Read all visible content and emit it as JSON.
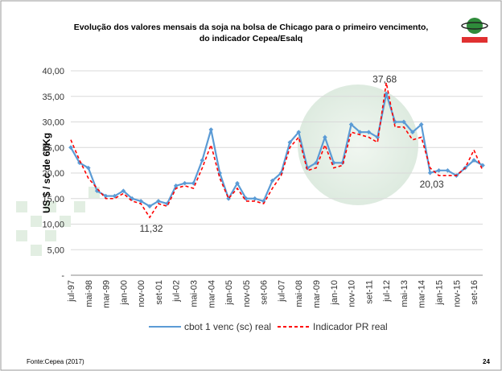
{
  "chart_data": {
    "type": "line",
    "title": "Evolução dos valores mensais da soja na bolsa de Chicago para o primeiro vencimento,",
    "subtitle": "do indicador Cepea/Esalq",
    "y_label": "US $ / sc de 60Kg",
    "source": "Fonte:Cepea (2017)",
    "page_number": "24",
    "categories": [
      "jul-97",
      null,
      "mai-98",
      null,
      "mar-99",
      null,
      "jan-00",
      null,
      "nov-00",
      null,
      "set-01",
      null,
      "jul-02",
      null,
      "mai-03",
      null,
      "mar-04",
      null,
      "jan-05",
      null,
      "nov-05",
      null,
      "set-06",
      null,
      "jul-07",
      null,
      "mai-08",
      null,
      "mar-09",
      null,
      "jan-10",
      null,
      "nov-10",
      null,
      "set-11",
      null,
      "jul-12",
      null,
      "mai-13",
      null,
      "mar-14",
      null,
      "jan-15",
      null,
      "nov-15",
      null,
      "set-16",
      null
    ],
    "series": [
      {
        "name": "cbot 1 venc (sc) real",
        "color": "#5b9bd5",
        "dash": "solid",
        "values": [
          25,
          22,
          21,
          16.5,
          15.5,
          15.5,
          16.5,
          15,
          14.5,
          13.5,
          14.5,
          14,
          17.5,
          18,
          18,
          22.5,
          28.5,
          20,
          15,
          18,
          15,
          15,
          14.5,
          18.5,
          20,
          26,
          28,
          21,
          22,
          27,
          22,
          22,
          29.5,
          28,
          28,
          27,
          35.5,
          30,
          30,
          28,
          29.5,
          20.03,
          20.5,
          20.5,
          19.5,
          21,
          22.5,
          21.5
        ],
        "value_labels": [
          null,
          null,
          null,
          null,
          null,
          null,
          null,
          null,
          null,
          null,
          null,
          null,
          null,
          null,
          null,
          null,
          null,
          null,
          null,
          null,
          null,
          null,
          null,
          null,
          null,
          null,
          null,
          null,
          null,
          null,
          null,
          null,
          null,
          null,
          null,
          null,
          null,
          null,
          null,
          null,
          null,
          "20,03",
          null,
          null,
          null,
          null,
          null,
          null
        ]
      },
      {
        "name": "Indicador PR real",
        "color": "#ff0000",
        "dash": "dashed",
        "values": [
          26.5,
          22.5,
          19,
          17,
          15,
          15,
          16,
          14.5,
          14,
          11.32,
          14,
          13.5,
          17,
          17.5,
          17,
          21,
          25.5,
          19,
          15,
          17,
          14.5,
          14.5,
          14,
          17,
          19.5,
          25,
          27,
          20.5,
          21,
          25.5,
          21,
          21.5,
          28,
          27.5,
          27,
          26,
          37.68,
          29,
          29,
          26.5,
          27,
          21,
          19.5,
          19.5,
          19.5,
          21,
          24.5,
          20.5
        ],
        "value_labels": [
          null,
          null,
          null,
          null,
          null,
          null,
          null,
          null,
          null,
          "11,32",
          null,
          null,
          null,
          null,
          null,
          null,
          null,
          null,
          null,
          null,
          null,
          null,
          null,
          null,
          null,
          null,
          null,
          null,
          null,
          null,
          null,
          null,
          null,
          null,
          null,
          null,
          "37,68",
          null,
          null,
          null,
          null,
          null,
          null,
          null,
          null,
          null,
          null,
          null
        ]
      }
    ],
    "ylim": [
      0,
      40
    ],
    "yticks": [
      {
        "value": 0,
        "label": "-"
      },
      {
        "value": 5,
        "label": "5,00"
      },
      {
        "value": 10,
        "label": "10,00"
      },
      {
        "value": 15,
        "label": "15,00"
      },
      {
        "value": 20,
        "label": "20,00"
      },
      {
        "value": 25,
        "label": "25,00"
      },
      {
        "value": 30,
        "label": "30,00"
      },
      {
        "value": 35,
        "label": "35,00"
      },
      {
        "value": 40,
        "label": "40,00"
      }
    ],
    "grid": true,
    "legend": "bottom"
  }
}
